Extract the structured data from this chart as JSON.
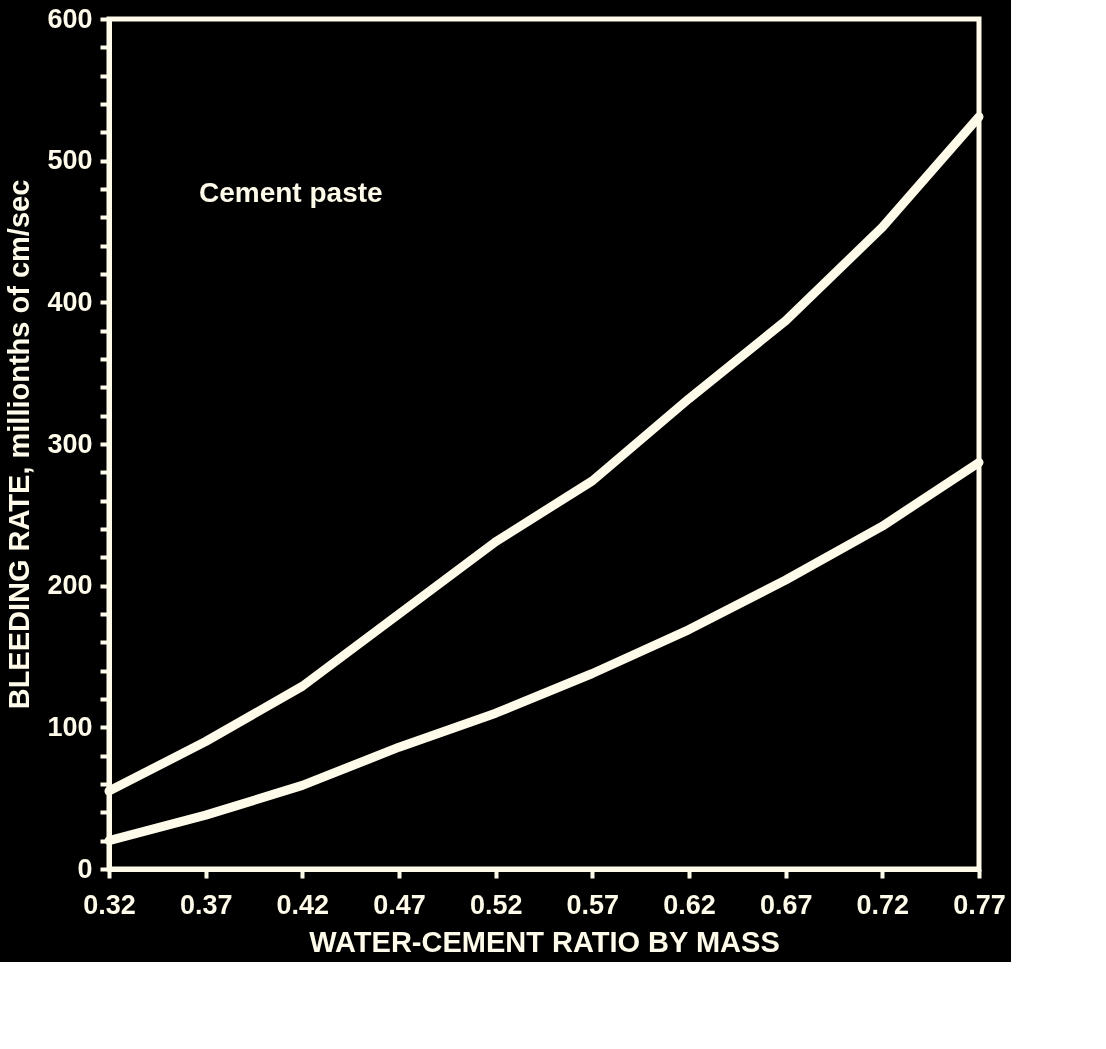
{
  "chart_data": {
    "type": "line",
    "xlabel": "WATER-CEMENT RATIO BY MASS",
    "ylabel": "BLEEDING RATE, millionths of cm/sec",
    "annotations": [
      "Cement paste"
    ],
    "x": [
      0.32,
      0.37,
      0.42,
      0.47,
      0.52,
      0.57,
      0.62,
      0.67,
      0.72,
      0.77
    ],
    "series": [
      {
        "color": "#fffbea",
        "values": [
          55,
          90,
          129,
          180,
          231,
          274,
          332,
          387,
          453,
          531
        ]
      },
      {
        "color": "#fffbea",
        "values": [
          20,
          38,
          59,
          86,
          110,
          138,
          169,
          204,
          242,
          287
        ]
      }
    ],
    "xlim": [
      0.32,
      0.77
    ],
    "ylim": [
      0,
      600
    ],
    "xticks": [
      0.32,
      0.37,
      0.42,
      0.47,
      0.52,
      0.57,
      0.62,
      0.67,
      0.72,
      0.77
    ],
    "yticks": [
      0,
      {
        "value": 20,
        "label": null
      },
      {
        "value": 40,
        "label": null
      },
      {
        "value": 60,
        "label": null
      },
      {
        "value": 80,
        "label": null
      },
      100,
      {
        "value": 120,
        "label": null
      },
      {
        "value": 140,
        "label": null
      },
      {
        "value": 160,
        "label": null
      },
      {
        "value": 180,
        "label": null
      },
      200,
      {
        "value": 220,
        "label": null
      },
      {
        "value": 240,
        "label": null
      },
      {
        "value": 260,
        "label": null
      },
      {
        "value": 280,
        "label": null
      },
      300,
      {
        "value": 320,
        "label": null
      },
      {
        "value": 340,
        "label": null
      },
      {
        "value": 360,
        "label": null
      },
      {
        "value": 380,
        "label": null
      },
      400,
      {
        "value": 420,
        "label": null
      },
      {
        "value": 440,
        "label": null
      },
      {
        "value": 460,
        "label": null
      },
      {
        "value": 480,
        "label": null
      },
      500,
      {
        "value": 520,
        "label": null
      },
      {
        "value": 540,
        "label": null
      },
      {
        "value": 560,
        "label": null
      },
      {
        "value": 580,
        "label": null
      },
      600
    ],
    "grid": false,
    "line_style": "solid"
  }
}
